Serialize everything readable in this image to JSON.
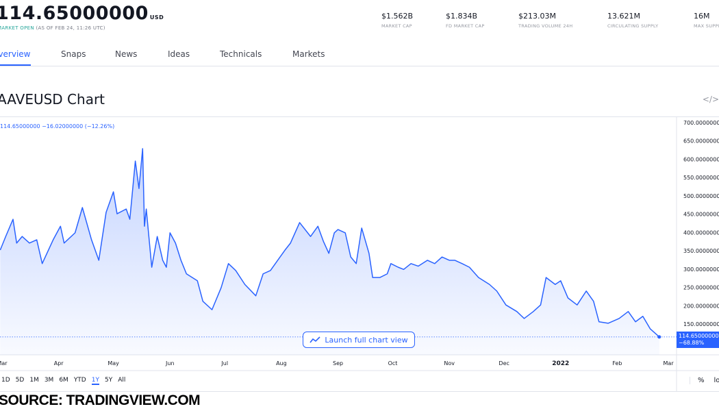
{
  "header": {
    "price": "114.65000000",
    "currency": "USD",
    "status_open": "MARKET OPEN",
    "status_time": "(AS OF FEB 24, 11:26 UTC)"
  },
  "stats": [
    {
      "value": "$1.562B",
      "label": "MARKET CAP"
    },
    {
      "value": "$1.834B",
      "label": "FD MARKET CAP"
    },
    {
      "value": "$213.03M",
      "label": "TRADING VOLUME 24H"
    },
    {
      "value": "13.621M",
      "label": "CIRCULATING SUPPLY"
    },
    {
      "value": "16M",
      "label": "MAX SUPPLY"
    }
  ],
  "tabs": [
    {
      "label": "Overview",
      "active": true
    },
    {
      "label": "Snaps"
    },
    {
      "label": "News"
    },
    {
      "label": "Ideas"
    },
    {
      "label": "Technicals"
    },
    {
      "label": "Markets"
    }
  ],
  "chart_title": "AAVEUSD Chart",
  "embed_icon": "code-icon",
  "legend": "114.65000000 −16.02000000 (−12.26%)",
  "launch_label": "Launch full chart view",
  "launch_icon": "line-chart-icon",
  "ranges": [
    "1D",
    "5D",
    "1M",
    "3M",
    "6M",
    "YTD",
    "1Y",
    "5Y",
    "All"
  ],
  "active_range": "1Y",
  "scale_options": [
    "%",
    "log"
  ],
  "source": "SOURCE: TRADINGVIEW.COM",
  "colors": {
    "line": "#2962ff",
    "price_box": "#2962ff"
  },
  "chart_data": {
    "type": "area",
    "ylim": [
      100,
      700
    ],
    "y_ticks": [
      "700.00000000",
      "650.00000000",
      "600.00000000",
      "550.00000000",
      "500.00000000",
      "450.00000000",
      "400.00000000",
      "350.00000000",
      "300.00000000",
      "250.00000000",
      "200.00000000",
      "150.00000000"
    ],
    "x_ticks": [
      "Mar",
      "Apr",
      "May",
      "Jun",
      "Jul",
      "Aug",
      "Sep",
      "Oct",
      "Nov",
      "Dec",
      "2022",
      "Feb",
      "Mar"
    ],
    "last_price_label": "114.65000000",
    "last_change_label": "−68.88%",
    "points": [
      [
        "2021-02-28",
        352
      ],
      [
        "2021-03-03",
        389
      ],
      [
        "2021-03-07",
        436
      ],
      [
        "2021-03-09",
        371
      ],
      [
        "2021-03-12",
        389
      ],
      [
        "2021-03-16",
        371
      ],
      [
        "2021-03-20",
        380
      ],
      [
        "2021-03-23",
        315
      ],
      [
        "2021-03-29",
        380
      ],
      [
        "2021-04-02",
        417
      ],
      [
        "2021-04-04",
        371
      ],
      [
        "2021-04-10",
        399
      ],
      [
        "2021-04-14",
        468
      ],
      [
        "2021-04-19",
        380
      ],
      [
        "2021-04-23",
        324
      ],
      [
        "2021-04-27",
        455
      ],
      [
        "2021-05-01",
        511
      ],
      [
        "2021-05-03",
        451
      ],
      [
        "2021-05-08",
        464
      ],
      [
        "2021-05-10",
        436
      ],
      [
        "2021-05-13",
        595
      ],
      [
        "2021-05-15",
        520
      ],
      [
        "2021-05-17",
        629
      ],
      [
        "2021-05-18",
        417
      ],
      [
        "2021-05-19",
        464
      ],
      [
        "2021-05-22",
        305
      ],
      [
        "2021-05-25",
        389
      ],
      [
        "2021-05-28",
        324
      ],
      [
        "2021-05-30",
        305
      ],
      [
        "2021-06-01",
        399
      ],
      [
        "2021-06-04",
        371
      ],
      [
        "2021-06-07",
        324
      ],
      [
        "2021-06-10",
        287
      ],
      [
        "2021-06-16",
        268
      ],
      [
        "2021-06-19",
        212
      ],
      [
        "2021-06-24",
        189
      ],
      [
        "2021-06-29",
        249
      ],
      [
        "2021-07-03",
        315
      ],
      [
        "2021-07-07",
        296
      ],
      [
        "2021-07-12",
        258
      ],
      [
        "2021-07-18",
        227
      ],
      [
        "2021-07-22",
        287
      ],
      [
        "2021-07-26",
        296
      ],
      [
        "2021-07-30",
        324
      ],
      [
        "2021-08-03",
        352
      ],
      [
        "2021-08-06",
        371
      ],
      [
        "2021-08-11",
        427
      ],
      [
        "2021-08-17",
        389
      ],
      [
        "2021-08-21",
        417
      ],
      [
        "2021-08-24",
        376
      ],
      [
        "2021-08-27",
        343
      ],
      [
        "2021-08-30",
        399
      ],
      [
        "2021-09-01",
        408
      ],
      [
        "2021-09-05",
        399
      ],
      [
        "2021-09-08",
        333
      ],
      [
        "2021-09-11",
        315
      ],
      [
        "2021-09-14",
        412
      ],
      [
        "2021-09-18",
        343
      ],
      [
        "2021-09-20",
        277
      ],
      [
        "2021-09-24",
        277
      ],
      [
        "2021-09-28",
        287
      ],
      [
        "2021-09-30",
        315
      ],
      [
        "2021-10-04",
        305
      ],
      [
        "2021-10-07",
        299
      ],
      [
        "2021-10-11",
        315
      ],
      [
        "2021-10-15",
        308
      ],
      [
        "2021-10-20",
        324
      ],
      [
        "2021-10-24",
        315
      ],
      [
        "2021-10-28",
        333
      ],
      [
        "2021-11-01",
        324
      ],
      [
        "2021-11-04",
        324
      ],
      [
        "2021-11-08",
        315
      ],
      [
        "2021-11-12",
        305
      ],
      [
        "2021-11-17",
        277
      ],
      [
        "2021-11-23",
        258
      ],
      [
        "2021-11-27",
        240
      ],
      [
        "2021-12-02",
        202
      ],
      [
        "2021-12-08",
        184
      ],
      [
        "2021-12-12",
        165
      ],
      [
        "2021-12-17",
        184
      ],
      [
        "2021-12-21",
        202
      ],
      [
        "2021-12-24",
        277
      ],
      [
        "2021-12-29",
        258
      ],
      [
        "2022-01-01",
        268
      ],
      [
        "2022-01-05",
        221
      ],
      [
        "2022-01-10",
        202
      ],
      [
        "2022-01-15",
        240
      ],
      [
        "2022-01-19",
        212
      ],
      [
        "2022-01-22",
        156
      ],
      [
        "2022-01-27",
        152
      ],
      [
        "2022-02-02",
        165
      ],
      [
        "2022-02-07",
        184
      ],
      [
        "2022-02-11",
        156
      ],
      [
        "2022-02-15",
        171
      ],
      [
        "2022-02-19",
        137
      ],
      [
        "2022-02-24",
        114.65
      ]
    ]
  }
}
